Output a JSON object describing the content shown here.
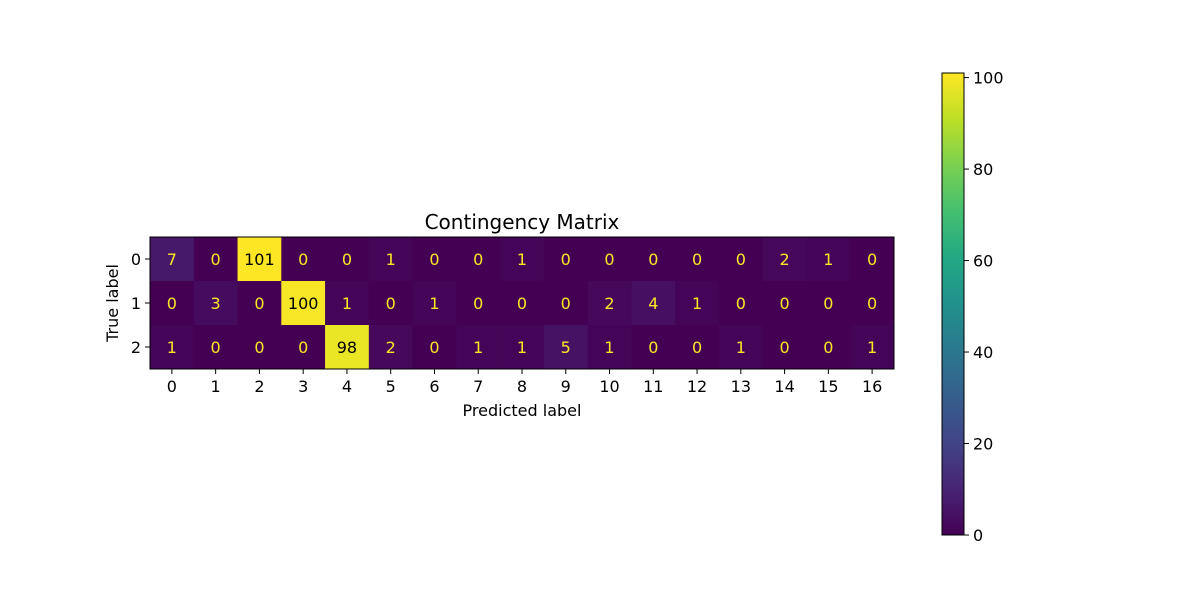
{
  "chart_data": {
    "type": "heatmap",
    "title": "Contingency Matrix",
    "xlabel": "Predicted label",
    "ylabel": "True label",
    "x_categories": [
      "0",
      "1",
      "2",
      "3",
      "4",
      "5",
      "6",
      "7",
      "8",
      "9",
      "10",
      "11",
      "12",
      "13",
      "14",
      "15",
      "16"
    ],
    "y_categories": [
      "0",
      "1",
      "2"
    ],
    "values": [
      [
        7,
        0,
        101,
        0,
        0,
        1,
        0,
        0,
        1,
        0,
        0,
        0,
        0,
        0,
        2,
        1,
        0
      ],
      [
        0,
        3,
        0,
        100,
        1,
        0,
        1,
        0,
        0,
        0,
        2,
        4,
        1,
        0,
        0,
        0,
        0
      ],
      [
        1,
        0,
        0,
        0,
        98,
        2,
        0,
        1,
        1,
        5,
        1,
        0,
        0,
        1,
        0,
        0,
        1
      ]
    ],
    "colorbar": {
      "colormap": "viridis",
      "range": [
        0,
        101
      ],
      "ticks": [
        "0",
        "20",
        "40",
        "60",
        "80",
        "100"
      ]
    },
    "grid": false,
    "text_colors": {
      "low": "#fde725",
      "high": "#000000"
    }
  }
}
